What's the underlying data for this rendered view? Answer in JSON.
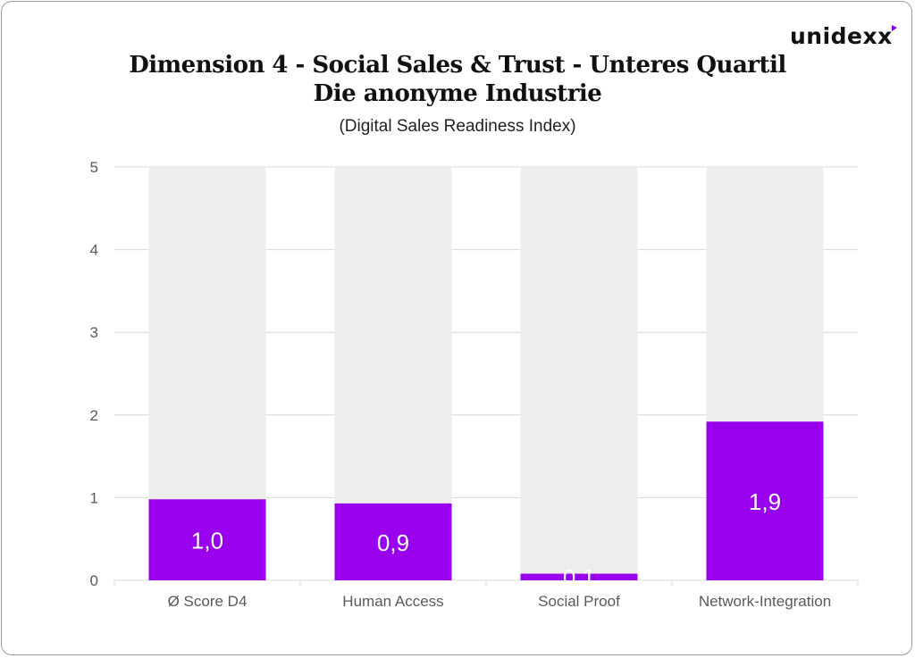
{
  "brand": {
    "name": "unidexx",
    "accent_color": "#8B00F0"
  },
  "chart_data": {
    "type": "bar",
    "title": "Dimension 4 - Social Sales & Trust - Unteres Quartil",
    "subtitle_line": "Die anonyme Industrie",
    "caption": "(Digital Sales Readiness Index)",
    "categories": [
      "Ø Score D4",
      "Human Access",
      "Social Proof",
      "Network-Integration"
    ],
    "values": [
      0.98,
      0.93,
      0.08,
      1.92
    ],
    "data_labels": [
      "1,0",
      "0,9",
      "0,1",
      "1,9"
    ],
    "ylim": [
      0,
      5
    ],
    "yticks": [
      "0",
      "1",
      "2",
      "3",
      "4",
      "5"
    ],
    "background_bar_value": 5,
    "grid": true,
    "legend": "none",
    "colors": {
      "bar": "#9900EE",
      "background_bar": "#EDEDED",
      "grid": "#D9D9D9",
      "label": "#FFFFFF"
    }
  }
}
